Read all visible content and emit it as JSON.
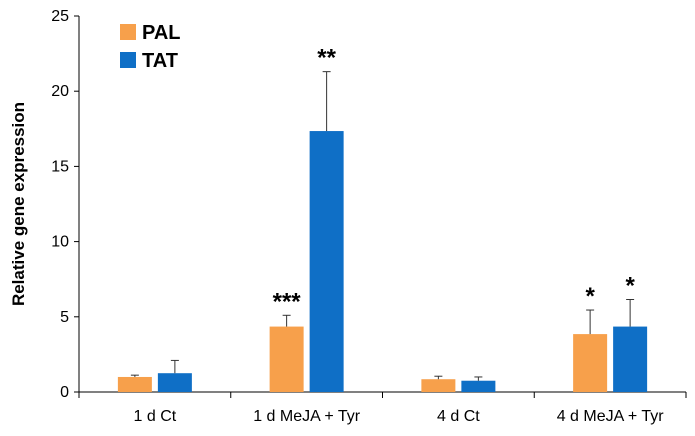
{
  "chart_data": {
    "type": "bar",
    "title": "",
    "xlabel": "",
    "ylabel": "Relative gene expression",
    "ylim": [
      0,
      25
    ],
    "yticks": [
      0,
      5,
      10,
      15,
      20,
      25
    ],
    "grid": false,
    "legend_placement": "top-left",
    "categories": [
      "1 d Ct",
      "1 d MeJA + Tyr",
      "4 d Ct",
      "4 d MeJA + Tyr"
    ],
    "series": [
      {
        "name": "PAL",
        "color": "#F7A04B",
        "values": [
          1.0,
          4.35,
          0.85,
          3.85
        ],
        "errors": [
          0.12,
          0.75,
          0.2,
          1.6
        ],
        "significance": [
          "",
          "***",
          "",
          "*"
        ]
      },
      {
        "name": "TAT",
        "color": "#0F6FC6",
        "values": [
          1.25,
          17.35,
          0.75,
          4.35
        ],
        "errors": [
          0.85,
          3.95,
          0.25,
          1.8
        ],
        "significance": [
          "",
          "**",
          "",
          "*"
        ]
      }
    ]
  }
}
